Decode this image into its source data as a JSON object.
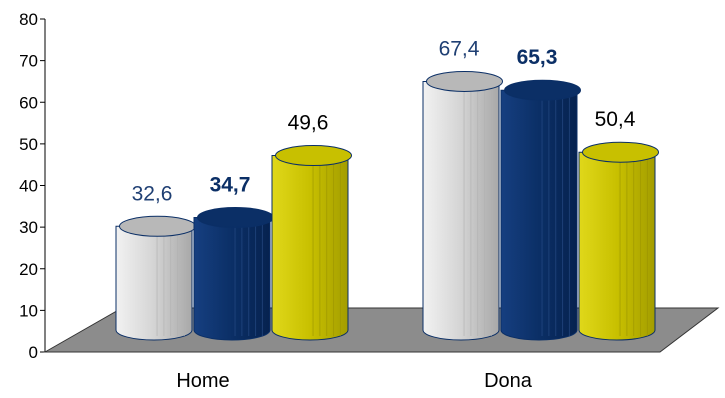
{
  "chart_data": {
    "type": "bar",
    "style": "3d-cylinder",
    "categories": [
      "Home",
      "Dona"
    ],
    "series": [
      {
        "values": [
          32.6,
          67.4
        ],
        "color": "#d9d9d9",
        "label_color": "#1f3f73",
        "label_bold": false,
        "value_labels": [
          "32,6",
          "67,4"
        ]
      },
      {
        "values": [
          34.7,
          65.3
        ],
        "color": "#0b2f66",
        "label_color": "#0b2f66",
        "label_bold": true,
        "value_labels": [
          "34,7",
          "65,3"
        ]
      },
      {
        "values": [
          49.6,
          50.4
        ],
        "color": "#c8c000",
        "label_color": "#000000",
        "label_bold": false,
        "value_labels": [
          "49,6",
          "50,4"
        ]
      }
    ],
    "ylim": [
      0,
      80
    ],
    "yticks": [
      "0",
      "10",
      "20",
      "30",
      "40",
      "50",
      "60",
      "70",
      "80"
    ],
    "title": "",
    "xlabel": "",
    "ylabel": "",
    "grid": false,
    "legend": "none",
    "floor_color": "#8c8c8c"
  }
}
